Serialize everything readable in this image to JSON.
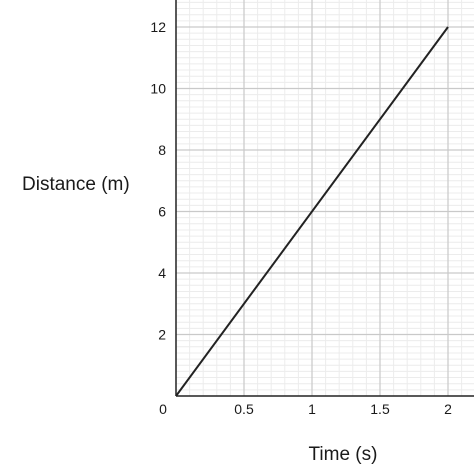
{
  "chart_data": {
    "type": "line",
    "xlabel": "Time (s)",
    "ylabel": "Distance (m)",
    "xlim": [
      0,
      2
    ],
    "ylim": [
      0,
      12
    ],
    "xticks": [
      0.5,
      1,
      1.5,
      2
    ],
    "xtick_labels": [
      "0.5",
      "1",
      "1.5",
      "2"
    ],
    "yticks": [
      2,
      4,
      6,
      8,
      10,
      12
    ],
    "ytick_labels": [
      "2",
      "4",
      "6",
      "8",
      "10",
      "12"
    ],
    "origin_label": "0",
    "grid": true,
    "minor_grid": true,
    "series": [
      {
        "x": [
          0,
          2
        ],
        "y": [
          0,
          12
        ],
        "color": "#222222"
      }
    ]
  }
}
